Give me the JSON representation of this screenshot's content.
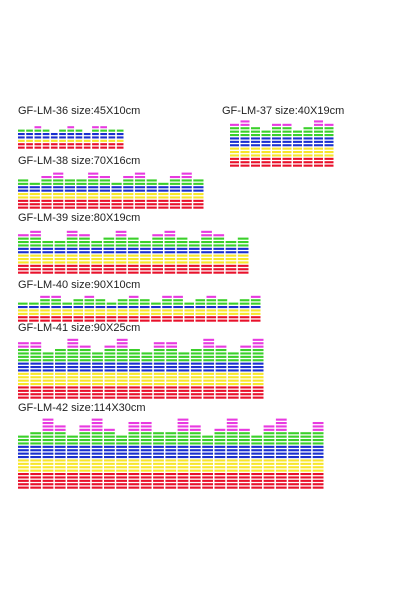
{
  "products": [
    {
      "label": "GF-LM-36 size:45X10cm"
    },
    {
      "label": "GF-LM-37 size:40X19cm"
    },
    {
      "label": "GF-LM-38 size:70X16cm"
    },
    {
      "label": "GF-LM-39 size:80X19cm"
    },
    {
      "label": "GF-LM-40 size:90X10cm"
    },
    {
      "label": "GF-LM-41 size:90X25cm"
    },
    {
      "label": "GF-LM-42 size:114X30cm"
    }
  ]
}
